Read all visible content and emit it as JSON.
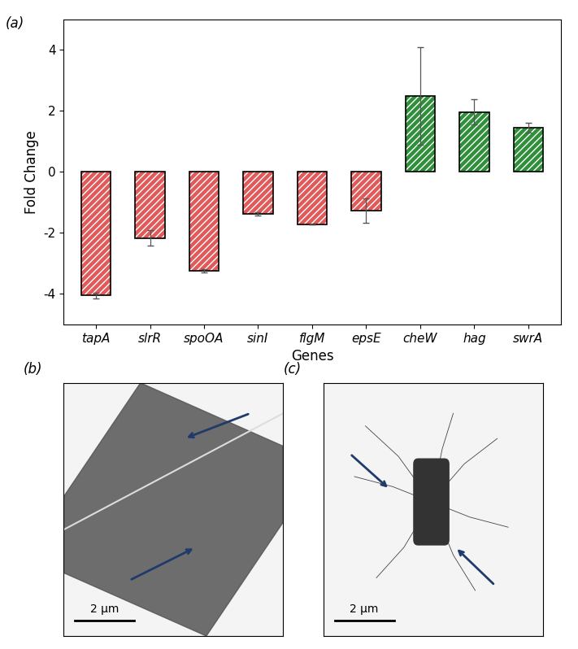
{
  "chart_data": {
    "type": "bar",
    "panel_label": "(a)",
    "x_label": "Genes",
    "y_label": "Fold Change",
    "categories": [
      "tapA",
      "slrR",
      "spoOA",
      "sinI",
      "flgM",
      "epsE",
      "cheW",
      "hag",
      "swrA"
    ],
    "values": [
      -4.05,
      -2.17,
      -3.25,
      -1.38,
      -1.72,
      -1.28,
      2.5,
      1.97,
      1.45
    ],
    "errors": [
      0.1,
      0.25,
      0.05,
      0.05,
      0.0,
      0.4,
      1.6,
      0.42,
      0.15
    ],
    "colors": [
      "#e05a5a",
      "#e05a5a",
      "#e05a5a",
      "#e05a5a",
      "#e05a5a",
      "#e05a5a",
      "#2f8f3a",
      "#2f8f3a",
      "#2f8f3a"
    ],
    "ylim": [
      -5,
      5
    ],
    "yticks": [
      -4,
      -2,
      0,
      2,
      4
    ],
    "grid": false
  },
  "images": [
    {
      "panel_label": "(b)",
      "scale_bar": "2 μm"
    },
    {
      "panel_label": "(c)",
      "scale_bar": "2 μm"
    }
  ]
}
